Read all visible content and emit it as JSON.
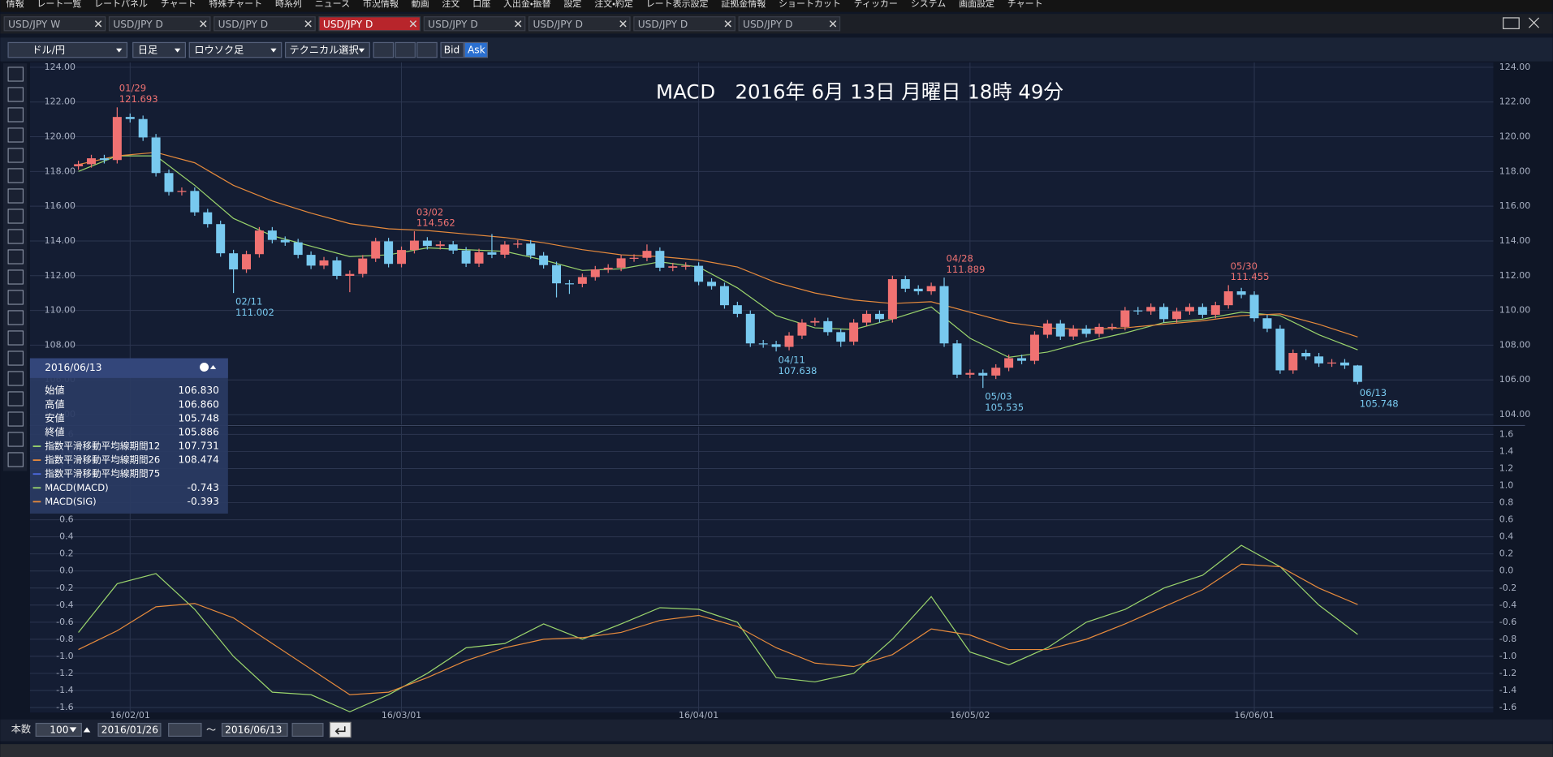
{
  "menu": [
    "情報",
    "レート一覧",
    "レートパネル",
    "チャート",
    "特殊チャート",
    "時系列",
    "ニュース",
    "市況情報",
    "動画",
    "注文",
    "口座",
    "入出金・振替",
    "設定",
    "注文・約定",
    "レート表示設定",
    "証拠金情報",
    "ショートカット",
    "ティッカー",
    "システム",
    "画面設定",
    "チャート"
  ],
  "tabs": [
    "USD/JPY W",
    "USD/JPY D",
    "USD/JPY D",
    "USD/JPY D",
    "USD/JPY D",
    "USD/JPY D",
    "USD/JPY D",
    "USD/JPY D"
  ],
  "active_tab": 3,
  "toolbar": {
    "symbol": "ドル/円",
    "period": "日足",
    "style": "ロウソク足",
    "technical": "テクニカル選択",
    "bid": "Bid",
    "ask": "Ask"
  },
  "chart_data": {
    "type": "candlestick",
    "title": "MACD　2016年 6月 13日 月曜日 18時 49分",
    "up_color": "#f07272",
    "down_color": "#78c9ef",
    "grid": true,
    "xlim": [
      -3.75,
      109.5
    ],
    "xticks": [
      {
        "value": 4,
        "label": "16/02/01"
      },
      {
        "value": 25,
        "label": "16/03/01"
      },
      {
        "value": 48,
        "label": "16/04/01"
      },
      {
        "value": 69,
        "label": "16/05/02"
      },
      {
        "value": 91,
        "label": "16/06/01"
      }
    ],
    "ylim": [
      104,
      124
    ],
    "yticks": [
      {
        "value": 104,
        "label": "104.00"
      },
      {
        "value": 106,
        "label": "106.00"
      },
      {
        "value": 108,
        "label": "108.00"
      },
      {
        "value": 110,
        "label": "110.00"
      },
      {
        "value": 112,
        "label": "112.00"
      },
      {
        "value": 114,
        "label": "114.00"
      },
      {
        "value": 116,
        "label": "116.00"
      },
      {
        "value": 118,
        "label": "118.00"
      },
      {
        "value": 120,
        "label": "120.00"
      },
      {
        "value": 122,
        "label": "122.00"
      },
      {
        "value": 124,
        "label": "124.00"
      }
    ],
    "open": [
      118.3,
      118.42,
      118.76,
      118.66,
      121.14,
      121.02,
      119.96,
      117.91,
      116.82,
      116.88,
      115.65,
      114.97,
      113.29,
      112.36,
      113.24,
      114.6,
      114.06,
      113.92,
      113.2,
      112.58,
      112.88,
      111.99,
      112.1,
      112.99,
      113.98,
      112.68,
      113.48,
      114.02,
      113.71,
      113.8,
      113.45,
      112.7,
      113.35,
      113.21,
      113.79,
      113.85,
      113.16,
      112.61,
      111.56,
      111.53,
      111.92,
      112.36,
      112.46,
      113.0,
      113.03,
      113.43,
      112.46,
      112.54,
      112.57,
      111.65,
      111.4,
      110.3,
      109.8,
      108.1,
      108.05,
      107.9,
      108.55,
      109.3,
      109.38,
      108.75,
      108.2,
      109.3,
      109.8,
      109.5,
      111.8,
      111.25,
      111.1,
      111.4,
      108.1,
      106.3,
      106.4,
      106.25,
      106.7,
      107.25,
      107.1,
      108.6,
      109.25,
      108.5,
      108.95,
      108.65,
      109.05,
      109.05,
      110.0,
      109.95,
      110.2,
      109.5,
      109.95,
      110.2,
      109.75,
      110.3,
      111.1,
      110.9,
      109.55,
      108.95,
      106.55,
      107.55,
      107.35,
      106.95,
      107.0,
      106.83
    ],
    "high": [
      118.62,
      118.96,
      118.96,
      121.693,
      121.34,
      121.22,
      120.16,
      118.11,
      117.08,
      117.08,
      115.85,
      115.17,
      113.49,
      113.44,
      114.8,
      114.8,
      114.26,
      114.12,
      113.4,
      113.08,
      113.08,
      112.3,
      113.19,
      114.18,
      114.18,
      113.68,
      114.562,
      114.22,
      114.0,
      114.0,
      113.65,
      113.55,
      114.4,
      113.99,
      114.05,
      114.05,
      113.36,
      112.81,
      111.76,
      112.12,
      112.56,
      112.66,
      113.2,
      113.23,
      113.8,
      113.63,
      112.74,
      112.77,
      112.77,
      111.85,
      111.6,
      110.5,
      110.0,
      108.3,
      108.25,
      108.75,
      109.5,
      109.58,
      109.58,
      108.95,
      109.5,
      110.0,
      110.0,
      112.0,
      112.0,
      111.45,
      111.6,
      111.889,
      108.3,
      106.6,
      106.6,
      106.9,
      107.45,
      107.45,
      108.8,
      109.45,
      109.45,
      109.15,
      109.15,
      109.25,
      109.25,
      110.2,
      110.2,
      110.4,
      110.4,
      110.15,
      110.4,
      110.4,
      110.5,
      111.455,
      111.3,
      111.1,
      109.75,
      109.15,
      107.75,
      107.75,
      107.55,
      107.2,
      107.2,
      106.86
    ],
    "low": [
      118.1,
      118.22,
      118.46,
      118.46,
      120.82,
      119.76,
      117.71,
      116.62,
      116.62,
      115.45,
      114.77,
      113.09,
      111.002,
      112.16,
      113.04,
      113.86,
      113.72,
      113.0,
      112.38,
      112.38,
      111.79,
      111.05,
      111.9,
      112.79,
      112.48,
      112.48,
      113.28,
      113.51,
      113.51,
      113.25,
      112.5,
      112.5,
      113.01,
      113.01,
      113.59,
      112.96,
      112.41,
      110.75,
      110.95,
      111.33,
      111.72,
      112.16,
      112.26,
      112.8,
      112.83,
      112.26,
      112.26,
      112.34,
      111.45,
      111.2,
      110.1,
      109.6,
      107.9,
      107.85,
      107.638,
      107.7,
      108.35,
      109.1,
      108.55,
      107.9,
      108.0,
      109.1,
      109.3,
      109.3,
      111.05,
      110.9,
      110.9,
      107.9,
      106.1,
      106.1,
      105.535,
      106.05,
      106.5,
      106.9,
      106.9,
      108.4,
      108.3,
      108.3,
      108.45,
      108.45,
      108.85,
      108.85,
      109.75,
      109.75,
      109.3,
      109.3,
      109.75,
      109.55,
      109.55,
      110.1,
      110.7,
      109.35,
      108.75,
      106.35,
      106.35,
      107.15,
      106.75,
      106.75,
      106.63,
      105.748
    ],
    "close": [
      118.42,
      118.76,
      118.66,
      121.14,
      121.02,
      119.96,
      117.91,
      116.82,
      116.88,
      115.65,
      114.97,
      113.29,
      112.36,
      113.24,
      114.6,
      114.06,
      113.92,
      113.2,
      112.58,
      112.88,
      111.99,
      112.1,
      112.99,
      113.98,
      112.68,
      113.48,
      114.02,
      113.71,
      113.8,
      113.45,
      112.7,
      113.35,
      113.21,
      113.79,
      113.85,
      113.16,
      112.61,
      111.56,
      111.53,
      111.92,
      112.36,
      112.46,
      113.0,
      113.03,
      113.43,
      112.46,
      112.54,
      112.57,
      111.65,
      111.4,
      110.3,
      109.8,
      108.1,
      108.05,
      107.9,
      108.55,
      109.3,
      109.38,
      108.75,
      108.2,
      109.3,
      109.8,
      109.5,
      111.8,
      111.25,
      111.1,
      111.4,
      108.1,
      106.3,
      106.4,
      106.25,
      106.7,
      107.25,
      107.1,
      108.6,
      109.25,
      108.5,
      108.95,
      108.65,
      109.05,
      109.05,
      110.0,
      109.95,
      110.2,
      109.5,
      109.95,
      110.2,
      109.75,
      110.3,
      111.1,
      110.9,
      109.55,
      108.95,
      106.55,
      107.55,
      107.35,
      106.95,
      107.0,
      106.83,
      105.886
    ],
    "annotations": [
      {
        "index": 3,
        "date": "01/29",
        "field": "high"
      },
      {
        "index": 12,
        "date": "02/11",
        "field": "low"
      },
      {
        "index": 26,
        "date": "03/02",
        "field": "high"
      },
      {
        "index": 54,
        "date": "04/11",
        "field": "low"
      },
      {
        "index": 67,
        "date": "04/28",
        "field": "high"
      },
      {
        "index": 70,
        "date": "05/03",
        "field": "low"
      },
      {
        "index": 89,
        "date": "05/30",
        "field": "high"
      },
      {
        "index": 99,
        "date": "06/13",
        "field": "low"
      }
    ],
    "line_x": [
      0,
      3,
      6,
      9,
      12,
      15,
      18,
      21,
      24,
      27,
      30,
      33,
      36,
      39,
      42,
      45,
      48,
      51,
      54,
      57,
      60,
      63,
      66,
      69,
      72,
      75,
      78,
      81,
      84,
      87,
      90,
      93,
      96,
      99
    ],
    "lines": [
      {
        "color": "#9ad46c",
        "values": [
          118.0,
          118.9,
          118.9,
          117.2,
          115.3,
          114.3,
          113.7,
          113.1,
          113.2,
          113.6,
          113.5,
          113.4,
          112.9,
          112.3,
          112.4,
          112.8,
          112.5,
          111.3,
          109.7,
          109.0,
          108.9,
          109.5,
          110.2,
          108.4,
          107.3,
          107.6,
          108.2,
          108.7,
          109.3,
          109.5,
          109.9,
          109.7,
          108.6,
          107.731
        ]
      },
      {
        "color": "#e68a3c",
        "values": [
          118.4,
          118.9,
          119.1,
          118.5,
          117.2,
          116.3,
          115.6,
          115.0,
          114.7,
          114.6,
          114.4,
          114.2,
          113.9,
          113.5,
          113.2,
          113.1,
          112.9,
          112.5,
          111.6,
          111.0,
          110.6,
          110.4,
          110.5,
          109.9,
          109.3,
          109.0,
          108.9,
          109.0,
          109.2,
          109.4,
          109.7,
          109.8,
          109.2,
          108.474
        ]
      }
    ],
    "macd": {
      "ylim": [
        -1.6,
        1.6
      ],
      "yticks": [
        1.6,
        1.4,
        1.2,
        {
          "value": 1,
          "label": "1.0"
        },
        0.8,
        0.6,
        0.4,
        0.2,
        {
          "value": 0,
          "label": "0.0"
        },
        -0.2,
        -0.4,
        -0.6,
        -0.8,
        {
          "value": -1,
          "label": "-1.0"
        },
        -1.2,
        -1.4,
        -1.6
      ],
      "series": [
        {
          "color": "#9ad46c",
          "values": [
            -0.72,
            -0.15,
            -0.03,
            -0.45,
            -1.0,
            -1.42,
            -1.45,
            -1.65,
            -1.45,
            -1.2,
            -0.9,
            -0.85,
            -0.62,
            -0.8,
            -0.62,
            -0.43,
            -0.45,
            -0.6,
            -1.25,
            -1.3,
            -1.2,
            -0.8,
            -0.3,
            -0.95,
            -1.1,
            -0.9,
            -0.6,
            -0.45,
            -0.2,
            -0.05,
            0.3,
            0.05,
            -0.4,
            -0.743
          ]
        },
        {
          "color": "#e68a3c",
          "values": [
            -0.92,
            -0.7,
            -0.42,
            -0.38,
            -0.55,
            -0.85,
            -1.15,
            -1.45,
            -1.42,
            -1.25,
            -1.05,
            -0.9,
            -0.8,
            -0.78,
            -0.72,
            -0.58,
            -0.52,
            -0.65,
            -0.9,
            -1.08,
            -1.12,
            -0.98,
            -0.68,
            -0.75,
            -0.92,
            -0.92,
            -0.8,
            -0.62,
            -0.42,
            -0.22,
            0.08,
            0.05,
            -0.2,
            -0.393
          ]
        }
      ]
    }
  },
  "info_panel": {
    "date": "2016/06/13",
    "rows": [
      {
        "label": "始値",
        "value": "106.830"
      },
      {
        "label": "高値",
        "value": "106.860"
      },
      {
        "label": "安値",
        "value": "105.748"
      },
      {
        "label": "終値",
        "value": "105.886"
      }
    ],
    "indicators": [
      {
        "label": "指数平滑移動平均線期間12",
        "value": "107.731",
        "color": "#9ad46c"
      },
      {
        "label": "指数平滑移動平均線期間26",
        "value": "108.474",
        "color": "#e68a3c"
      },
      {
        "label": "指数平滑移動平均線期間75",
        "color": "#4d6be0"
      },
      {
        "label": "MACD(MACD)",
        "value": "-0.743",
        "color": "#9ad46c"
      },
      {
        "label": "MACD(SIG)",
        "value": "-0.393",
        "color": "#e68a3c"
      }
    ]
  },
  "footer": {
    "count_label": "本数",
    "count": "100",
    "from": "2016/01/26",
    "tilde": "～",
    "to": "2016/06/13"
  }
}
